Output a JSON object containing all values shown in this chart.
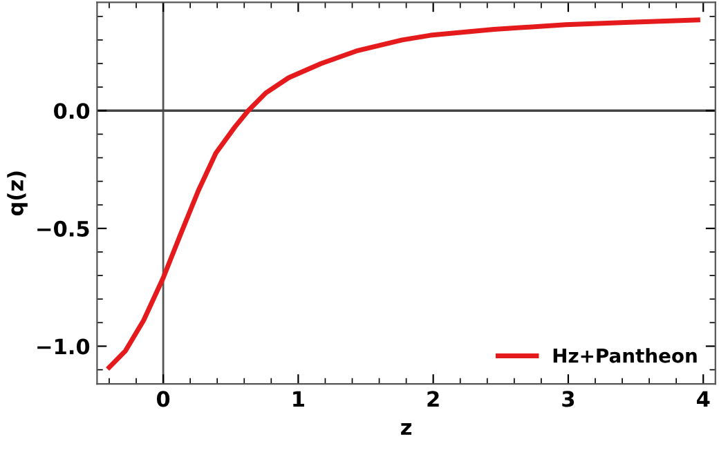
{
  "chart_data": {
    "type": "line",
    "xlabel": "z",
    "ylabel": "q(z)",
    "xlim": [
      -0.49,
      4.09
    ],
    "ylim": [
      -1.16,
      0.46
    ],
    "xticks": [
      0,
      1,
      2,
      3,
      4
    ],
    "yticks": [
      {
        "value": -1.0,
        "label": "−1.0"
      },
      {
        "value": -0.5,
        "label": "−0.5"
      },
      {
        "value": 0.0,
        "label": "0.0"
      }
    ],
    "series": [
      {
        "name": "Hz+Pantheon",
        "color": "#e41a1c",
        "x": [
          -0.4,
          -0.28,
          -0.145,
          0,
          0.125,
          0.26,
          0.39,
          0.53,
          0.63,
          0.76,
          0.93,
          1.17,
          1.44,
          1.77,
          1.98,
          2.45,
          2.98,
          3.46,
          3.96
        ],
        "values": [
          -1.09,
          -1.02,
          -0.89,
          -0.71,
          -0.53,
          -0.34,
          -0.18,
          -0.07,
          0,
          0.075,
          0.14,
          0.2,
          0.255,
          0.3,
          0.32,
          0.345,
          0.365,
          0.375,
          0.385
        ]
      }
    ],
    "ref_lines": [
      {
        "axis": "x",
        "value": 0,
        "color": "#555555"
      },
      {
        "axis": "y",
        "value": 0,
        "color": "#444444"
      }
    ],
    "legend": "bottom right",
    "grid": false,
    "marker": "none",
    "line_style": "solid"
  }
}
